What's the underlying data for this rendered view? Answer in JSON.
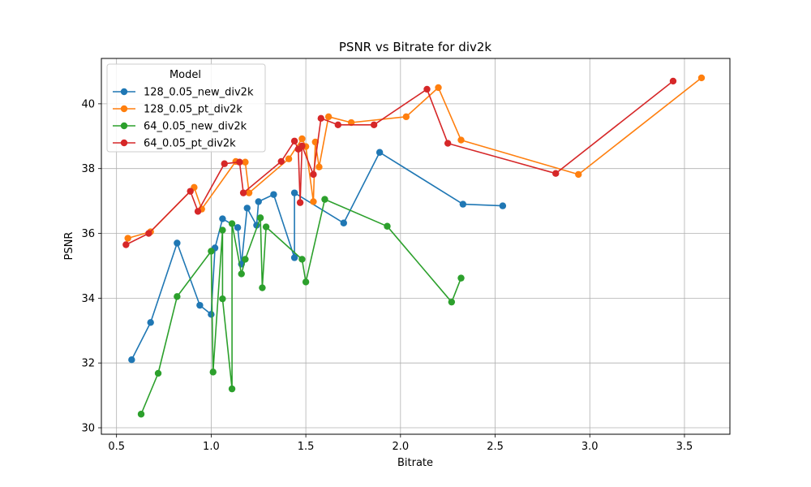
{
  "chart_data": {
    "type": "line",
    "title": "PSNR vs Bitrate for div2k",
    "xlabel": "Bitrate",
    "ylabel": "PSNR",
    "xlim": [
      0.42,
      3.74
    ],
    "ylim": [
      29.8,
      41.4
    ],
    "xticks": [
      0.5,
      1.0,
      1.5,
      2.0,
      2.5,
      3.0,
      3.5
    ],
    "xtick_labels": [
      "0.5",
      "1.0",
      "1.5",
      "2.0",
      "2.5",
      "3.0",
      "3.5"
    ],
    "yticks": [
      30,
      32,
      34,
      36,
      38,
      40
    ],
    "ytick_labels": [
      "30",
      "32",
      "34",
      "36",
      "38",
      "40"
    ],
    "grid": true,
    "legend": {
      "title": "Model",
      "placement": "top-left"
    },
    "series": [
      {
        "name": "128_0.05_new_div2k",
        "color": "#1f77b4",
        "x": [
          0.58,
          0.68,
          0.82,
          0.94,
          1.0,
          1.02,
          1.06,
          1.14,
          1.16,
          1.19,
          1.24,
          1.25,
          1.33,
          1.44,
          1.44,
          1.7,
          1.89,
          2.33,
          2.54
        ],
        "y": [
          32.1,
          33.25,
          35.7,
          33.78,
          33.5,
          35.55,
          36.45,
          36.18,
          35.05,
          36.78,
          36.25,
          36.98,
          37.2,
          35.25,
          37.25,
          36.32,
          38.5,
          36.9,
          36.85
        ]
      },
      {
        "name": "128_0.05_pt_div2k",
        "color": "#ff7f0e",
        "x": [
          0.56,
          0.68,
          0.91,
          0.95,
          1.13,
          1.18,
          1.2,
          1.41,
          1.48,
          1.5,
          1.54,
          1.55,
          1.57,
          1.62,
          1.74,
          2.03,
          2.2,
          2.32,
          2.94,
          3.59
        ],
        "y": [
          35.85,
          36.05,
          37.42,
          36.75,
          38.22,
          38.2,
          37.25,
          38.3,
          38.92,
          38.68,
          36.98,
          38.82,
          38.05,
          39.6,
          39.42,
          39.6,
          40.5,
          38.88,
          37.82,
          40.8
        ]
      },
      {
        "name": "64_0.05_new_div2k",
        "color": "#2ca02c",
        "x": [
          0.63,
          0.72,
          0.82,
          1.0,
          1.01,
          1.06,
          1.06,
          1.11,
          1.11,
          1.16,
          1.18,
          1.26,
          1.27,
          1.29,
          1.48,
          1.5,
          1.6,
          1.93,
          2.27,
          2.32
        ],
        "y": [
          30.42,
          31.68,
          34.05,
          35.45,
          31.72,
          36.1,
          33.98,
          31.2,
          36.3,
          34.75,
          35.2,
          36.48,
          34.32,
          36.2,
          35.2,
          34.5,
          37.05,
          36.22,
          33.88,
          34.62
        ]
      },
      {
        "name": "64_0.05_pt_div2k",
        "color": "#d62728",
        "x": [
          0.55,
          0.67,
          0.89,
          0.93,
          1.07,
          1.15,
          1.17,
          1.37,
          1.44,
          1.46,
          1.47,
          1.48,
          1.54,
          1.58,
          1.67,
          1.86,
          2.14,
          2.25,
          2.82,
          3.44
        ],
        "y": [
          35.65,
          36.0,
          37.3,
          36.68,
          38.15,
          38.2,
          37.25,
          38.22,
          38.85,
          38.6,
          36.95,
          38.7,
          37.82,
          39.55,
          39.35,
          39.35,
          40.45,
          38.78,
          37.85,
          40.7
        ]
      }
    ]
  }
}
